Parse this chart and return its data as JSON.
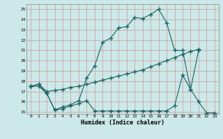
{
  "xlabel": "Humidex (Indice chaleur)",
  "bg_color": "#cce8e8",
  "grid_color": "#aacccc",
  "line_color": "#1a6060",
  "xlim": [
    -0.5,
    23.5
  ],
  "ylim": [
    14.8,
    25.5
  ],
  "xticks": [
    0,
    1,
    2,
    3,
    4,
    5,
    6,
    7,
    8,
    9,
    10,
    11,
    12,
    13,
    14,
    15,
    16,
    17,
    18,
    19,
    20,
    21,
    22,
    23
  ],
  "yticks": [
    15,
    16,
    17,
    18,
    19,
    20,
    21,
    22,
    23,
    24,
    25
  ],
  "line1_x": [
    0,
    1,
    2,
    3,
    4,
    5,
    6,
    7,
    8,
    9,
    10,
    11,
    12,
    13,
    14,
    15,
    16,
    17,
    18,
    19,
    20,
    21
  ],
  "line1_y": [
    17.5,
    17.7,
    16.8,
    15.2,
    15.5,
    15.7,
    16.1,
    18.3,
    19.5,
    21.8,
    22.2,
    23.2,
    23.3,
    24.2,
    24.1,
    24.5,
    25.0,
    23.7,
    21.0,
    21.0,
    17.2,
    21.0
  ],
  "line2_x": [
    0,
    1,
    2,
    3,
    4,
    5,
    6,
    7,
    8,
    9,
    10,
    11,
    12,
    13,
    14,
    15,
    16,
    17,
    18,
    19,
    20,
    21
  ],
  "line2_y": [
    17.5,
    17.7,
    17.0,
    17.1,
    17.2,
    17.4,
    17.5,
    17.7,
    17.9,
    18.1,
    18.3,
    18.5,
    18.7,
    18.9,
    19.1,
    19.4,
    19.7,
    20.0,
    20.3,
    20.6,
    20.9,
    21.1
  ],
  "line3_x": [
    0,
    1,
    2,
    3,
    4,
    5,
    6,
    7,
    8,
    9,
    10,
    11,
    12,
    13,
    14,
    15,
    16,
    17,
    18,
    19,
    20,
    21,
    22,
    23
  ],
  "line3_y": [
    17.5,
    17.5,
    16.8,
    15.2,
    15.3,
    15.6,
    15.8,
    16.1,
    15.1,
    15.1,
    15.1,
    15.1,
    15.1,
    15.1,
    15.1,
    15.1,
    15.1,
    15.1,
    15.6,
    18.6,
    17.2,
    16.0,
    14.9,
    14.9
  ]
}
